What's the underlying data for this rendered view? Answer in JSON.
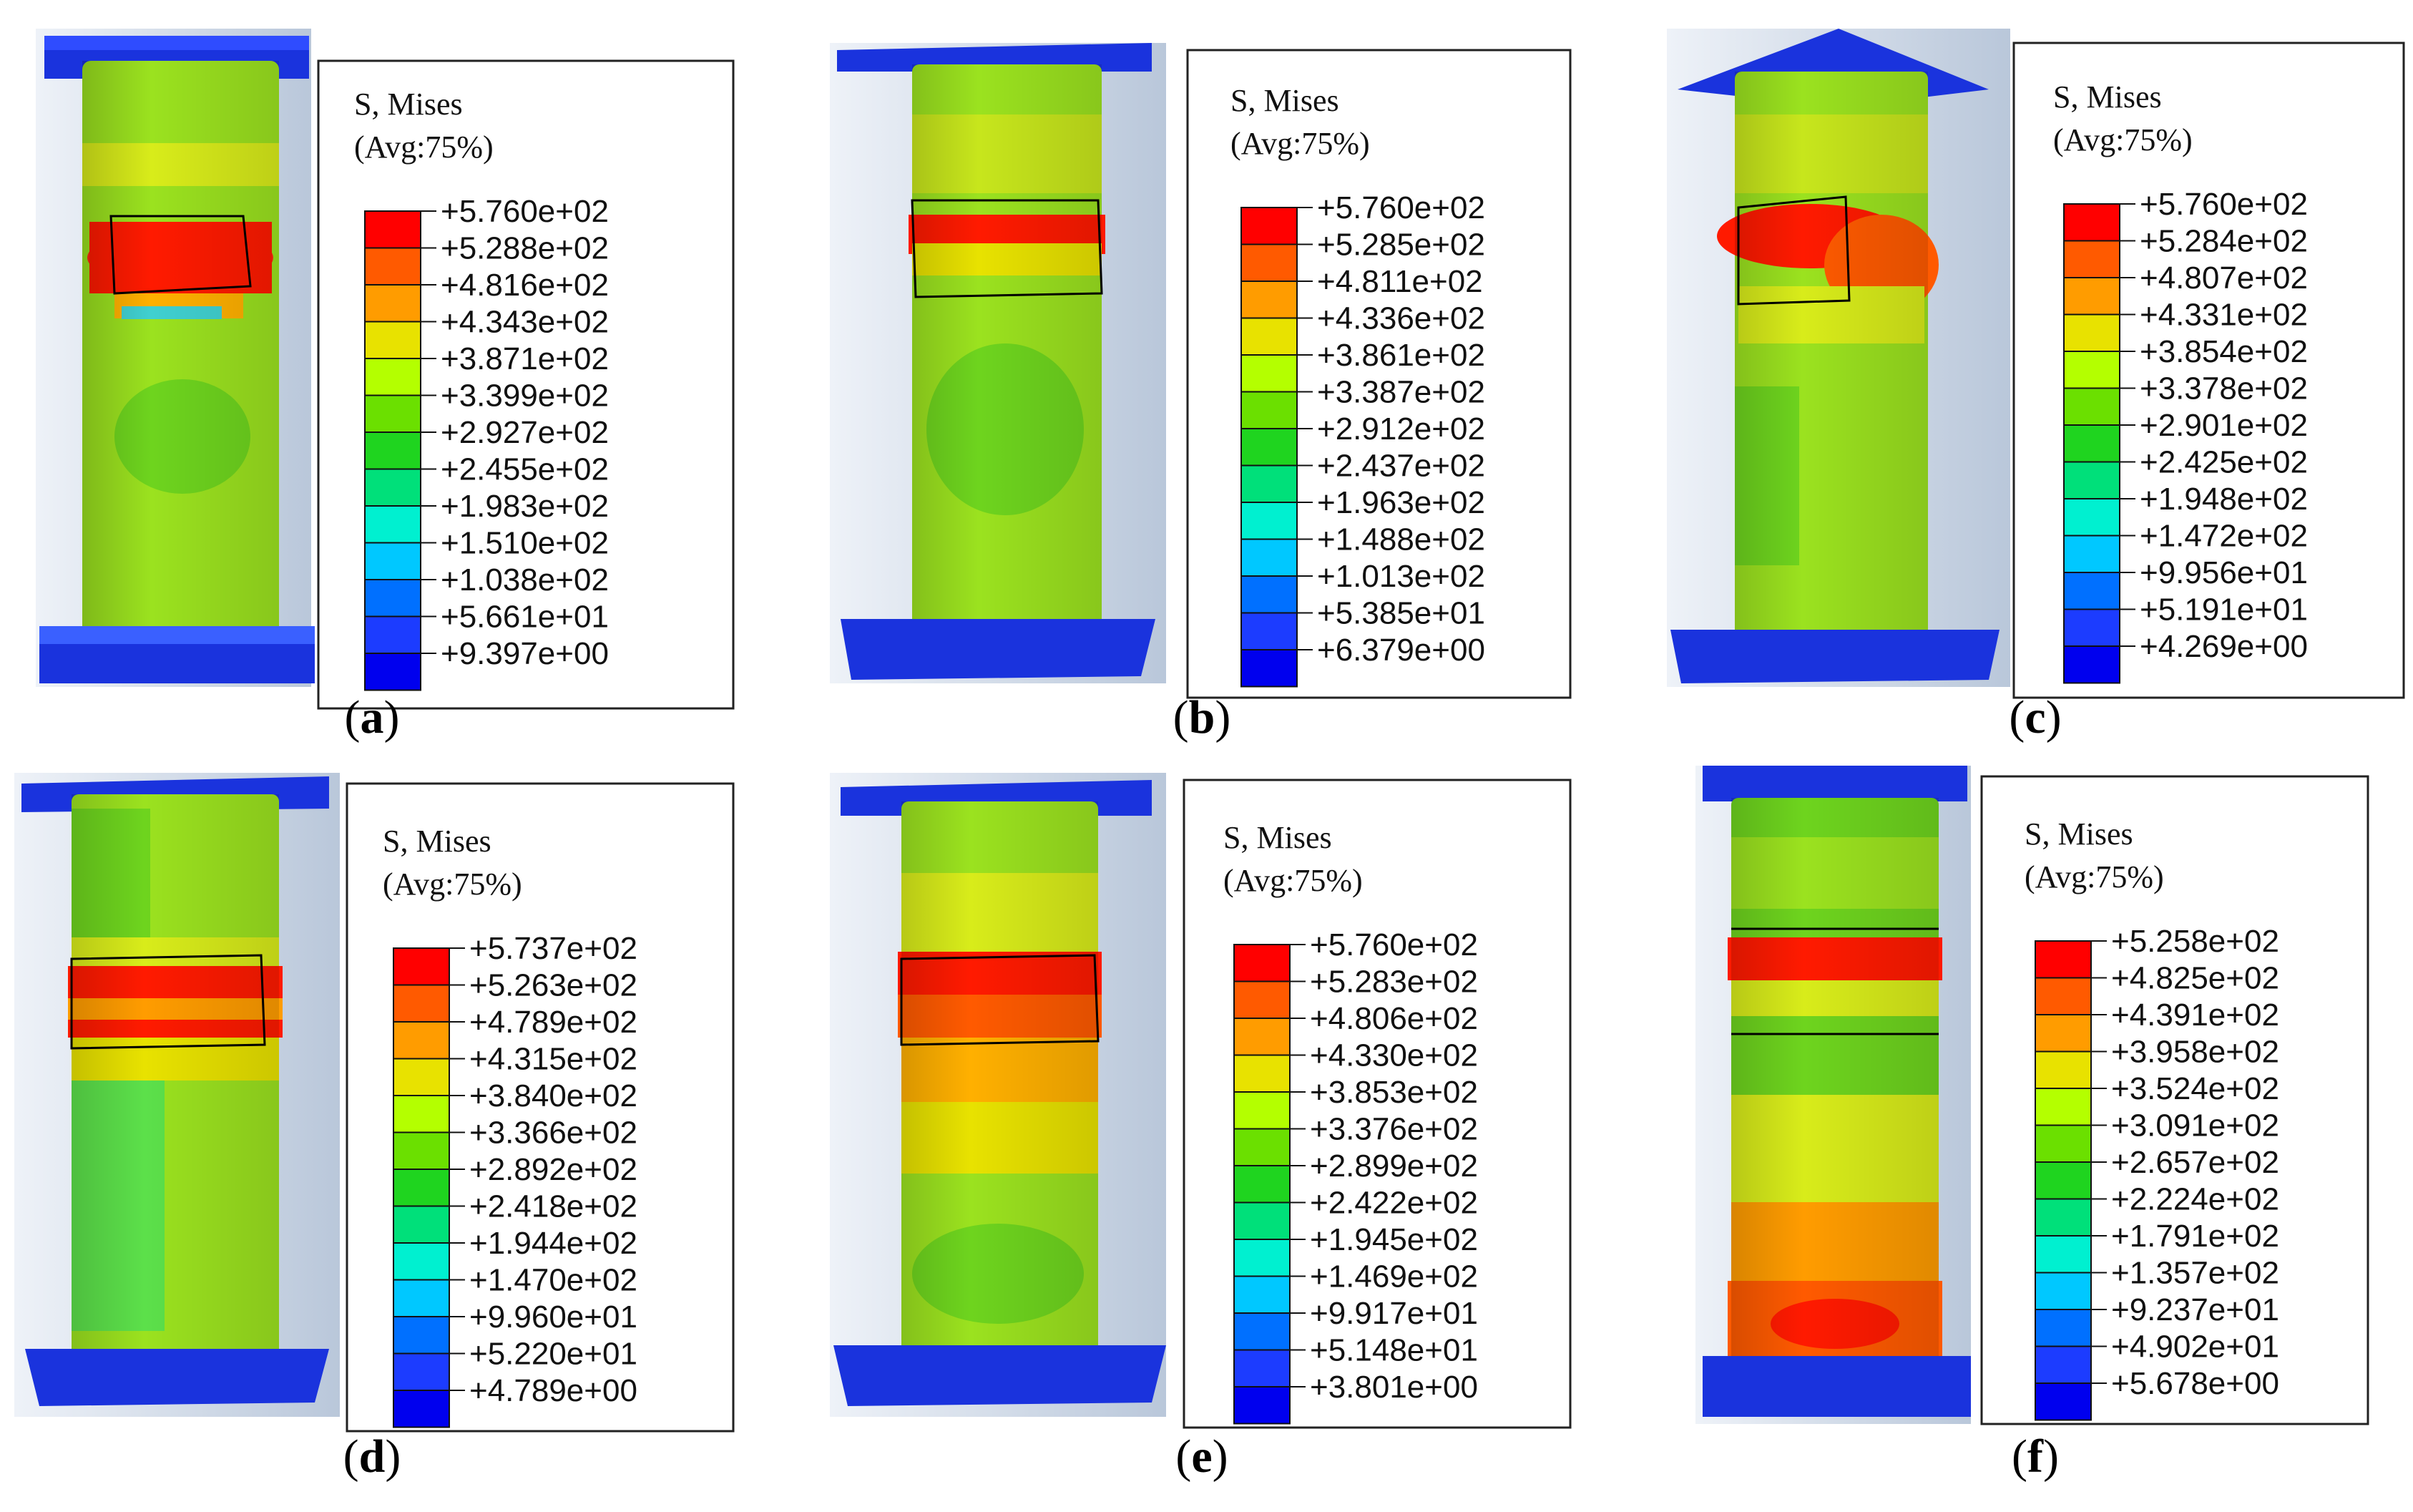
{
  "legend_colors": [
    "#ff0000",
    "#ff5a00",
    "#ff9c00",
    "#e8e200",
    "#b4ff00",
    "#6be000",
    "#1fd41f",
    "#00e07a",
    "#00f0d0",
    "#00c8ff",
    "#0070ff",
    "#1c3cff",
    "#0000ee"
  ],
  "panels": [
    {
      "label_letter": "a",
      "legend_title": "S, Mises",
      "legend_avg": "(Avg:75%)",
      "values": [
        "+5.760e+02",
        "+5.288e+02",
        "+4.816e+02",
        "+4.343e+02",
        "+3.871e+02",
        "+3.399e+02",
        "+2.927e+02",
        "+2.455e+02",
        "+1.983e+02",
        "+1.510e+02",
        "+1.038e+02",
        "+5.661e+01",
        "+9.397e+00"
      ]
    },
    {
      "label_letter": "b",
      "legend_title": "S, Mises",
      "legend_avg": "(Avg:75%)",
      "values": [
        "+5.760e+02",
        "+5.285e+02",
        "+4.811e+02",
        "+4.336e+02",
        "+3.861e+02",
        "+3.387e+02",
        "+2.912e+02",
        "+2.437e+02",
        "+1.963e+02",
        "+1.488e+02",
        "+1.013e+02",
        "+5.385e+01",
        "+6.379e+00"
      ]
    },
    {
      "label_letter": "c",
      "legend_title": "S, Mises",
      "legend_avg": "(Avg:75%)",
      "values": [
        "+5.760e+02",
        "+5.284e+02",
        "+4.807e+02",
        "+4.331e+02",
        "+3.854e+02",
        "+3.378e+02",
        "+2.901e+02",
        "+2.425e+02",
        "+1.948e+02",
        "+1.472e+02",
        "+9.956e+01",
        "+5.191e+01",
        "+4.269e+00"
      ]
    },
    {
      "label_letter": "d",
      "legend_title": "S, Mises",
      "legend_avg": "(Avg:75%)",
      "values": [
        "+5.737e+02",
        "+5.263e+02",
        "+4.789e+02",
        "+4.315e+02",
        "+3.840e+02",
        "+3.366e+02",
        "+2.892e+02",
        "+2.418e+02",
        "+1.944e+02",
        "+1.470e+02",
        "+9.960e+01",
        "+5.220e+01",
        "+4.789e+00"
      ]
    },
    {
      "label_letter": "e",
      "legend_title": "S, Mises",
      "legend_avg": "(Avg:75%)",
      "values": [
        "+5.760e+02",
        "+5.283e+02",
        "+4.806e+02",
        "+4.330e+02",
        "+3.853e+02",
        "+3.376e+02",
        "+2.899e+02",
        "+2.422e+02",
        "+1.945e+02",
        "+1.469e+02",
        "+9.917e+01",
        "+5.148e+01",
        "+3.801e+00"
      ]
    },
    {
      "label_letter": "f",
      "legend_title": "S, Mises",
      "legend_avg": "(Avg:75%)",
      "values": [
        "+5.258e+02",
        "+4.825e+02",
        "+4.391e+02",
        "+3.958e+02",
        "+3.524e+02",
        "+3.091e+02",
        "+2.657e+02",
        "+2.224e+02",
        "+1.791e+02",
        "+1.357e+02",
        "+9.237e+01",
        "+4.902e+01",
        "+5.678e+00"
      ]
    }
  ]
}
